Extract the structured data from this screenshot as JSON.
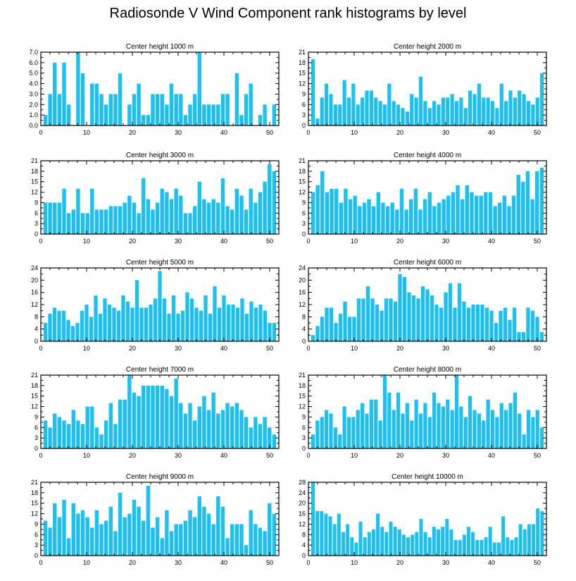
{
  "title": "Radiosonde V Wind Component rank histograms by level",
  "chart_data": [
    {
      "type": "bar",
      "title": "Center height 1000 m",
      "ylim": [
        0,
        7
      ],
      "yticks": [
        0,
        1,
        2,
        3,
        4,
        5,
        6,
        7
      ],
      "ytick_labels": [
        "0.0",
        "1.0",
        "2.0",
        "3.0",
        "4.0",
        "5.0",
        "6.0",
        "7.0"
      ],
      "xlim": [
        0,
        52
      ],
      "xticks": [
        0,
        10,
        20,
        30,
        40,
        50
      ],
      "values": [
        1,
        3,
        6,
        3,
        6,
        2,
        0,
        7,
        5,
        0,
        4,
        4,
        3,
        2,
        3,
        3,
        5,
        0,
        2,
        3,
        4,
        1,
        1,
        3,
        3,
        3,
        2,
        4,
        3,
        3,
        1,
        2,
        3,
        7,
        2,
        2,
        2,
        2,
        3,
        3,
        0,
        5,
        1,
        3,
        4,
        0,
        1,
        2,
        0,
        2
      ]
    },
    {
      "type": "bar",
      "title": "Center height 2000 m",
      "ylim": [
        0,
        21
      ],
      "yticks": [
        0,
        3,
        6,
        9,
        12,
        15,
        18,
        21
      ],
      "ytick_labels": [
        "0",
        "3",
        "6",
        "9",
        "12",
        "15",
        "18",
        "21"
      ],
      "xlim": [
        0,
        52
      ],
      "xticks": [
        0,
        10,
        20,
        30,
        40,
        50
      ],
      "values": [
        19,
        2,
        8,
        12,
        9,
        6,
        6,
        13,
        8,
        12,
        6,
        8,
        10,
        10,
        8,
        7,
        6,
        12,
        7,
        6,
        5,
        4,
        9,
        8,
        14,
        7,
        5,
        7,
        6,
        8,
        8,
        9,
        7,
        8,
        5,
        10,
        9,
        12,
        8,
        8,
        7,
        5,
        12,
        7,
        10,
        8,
        10,
        9,
        7,
        6,
        8,
        15
      ]
    },
    {
      "type": "bar",
      "title": "Center height 3000 m",
      "ylim": [
        0,
        21
      ],
      "yticks": [
        0,
        3,
        6,
        9,
        12,
        15,
        18,
        21
      ],
      "ytick_labels": [
        "0",
        "3",
        "6",
        "9",
        "12",
        "15",
        "18",
        "21"
      ],
      "xlim": [
        0,
        52
      ],
      "xticks": [
        0,
        10,
        20,
        30,
        40,
        50
      ],
      "values": [
        9,
        9,
        9,
        9,
        13,
        6,
        7,
        13,
        6,
        6,
        13,
        7,
        7,
        7,
        8,
        8,
        8,
        9,
        11,
        9,
        6,
        16,
        10,
        7,
        9,
        13,
        12,
        10,
        13,
        11,
        6,
        6,
        8,
        15,
        10,
        9,
        10,
        9,
        16,
        8,
        7,
        13,
        11,
        7,
        13,
        9,
        12,
        15,
        20,
        18
      ]
    },
    {
      "type": "bar",
      "title": "Center height 4000 m",
      "ylim": [
        0,
        21
      ],
      "yticks": [
        0,
        3,
        6,
        9,
        12,
        15,
        18,
        21
      ],
      "ytick_labels": [
        "0",
        "3",
        "6",
        "9",
        "12",
        "15",
        "18",
        "21"
      ],
      "xlim": [
        0,
        52
      ],
      "xticks": [
        0,
        10,
        20,
        30,
        40,
        50
      ],
      "values": [
        12,
        14,
        18,
        12,
        13,
        13,
        9,
        13,
        10,
        11,
        8,
        9,
        10,
        8,
        12,
        9,
        8,
        9,
        7,
        13,
        7,
        10,
        13,
        7,
        10,
        12,
        8,
        9,
        10,
        11,
        12,
        14,
        10,
        14,
        12,
        11,
        11,
        12,
        12,
        8,
        9,
        11,
        8,
        11,
        17,
        15,
        18,
        10,
        18,
        19
      ]
    },
    {
      "type": "bar",
      "title": "Center height 5000 m",
      "ylim": [
        0,
        24
      ],
      "yticks": [
        0,
        4,
        8,
        12,
        16,
        20,
        24
      ],
      "ytick_labels": [
        "0",
        "4",
        "8",
        "12",
        "16",
        "20",
        "24"
      ],
      "xlim": [
        0,
        52
      ],
      "xticks": [
        0,
        10,
        20,
        30,
        40,
        50
      ],
      "values": [
        6,
        9,
        11,
        10,
        10,
        7,
        5,
        6,
        10,
        12,
        8,
        15,
        9,
        14,
        12,
        11,
        10,
        15,
        13,
        11,
        20,
        11,
        11,
        12,
        14,
        23,
        14,
        9,
        15,
        9,
        10,
        16,
        14,
        11,
        10,
        15,
        9,
        18,
        11,
        15,
        12,
        12,
        11,
        14,
        9,
        13,
        11,
        12,
        10,
        6,
        6
      ]
    },
    {
      "type": "bar",
      "title": "Center height 6000 m",
      "ylim": [
        0,
        24
      ],
      "yticks": [
        0,
        4,
        8,
        12,
        16,
        20,
        24
      ],
      "ytick_labels": [
        "0",
        "4",
        "8",
        "12",
        "16",
        "20",
        "24"
      ],
      "xlim": [
        0,
        52
      ],
      "xticks": [
        0,
        10,
        20,
        30,
        40,
        50
      ],
      "values": [
        2,
        5,
        8,
        11,
        11,
        6,
        9,
        13,
        8,
        8,
        14,
        14,
        18,
        14,
        12,
        10,
        14,
        14,
        13,
        22,
        21,
        16,
        15,
        14,
        18,
        17,
        15,
        12,
        11,
        16,
        19,
        11,
        19,
        13,
        11,
        12,
        12,
        12,
        11,
        10,
        6,
        10,
        11,
        7,
        11,
        3,
        3,
        11,
        10,
        8,
        3
      ]
    },
    {
      "type": "bar",
      "title": "Center height 7000 m",
      "ylim": [
        0,
        21
      ],
      "yticks": [
        0,
        3,
        6,
        9,
        12,
        15,
        18,
        21
      ],
      "ytick_labels": [
        "0",
        "3",
        "6",
        "9",
        "12",
        "15",
        "18",
        "21"
      ],
      "xlim": [
        0,
        52
      ],
      "xticks": [
        0,
        10,
        20,
        30,
        40,
        50
      ],
      "values": [
        8,
        6,
        10,
        9,
        8,
        7,
        11,
        8,
        7,
        12,
        12,
        6,
        4,
        8,
        13,
        7,
        14,
        14,
        21,
        16,
        15,
        18,
        18,
        18,
        18,
        18,
        17,
        15,
        20,
        13,
        10,
        13,
        8,
        12,
        15,
        11,
        16,
        10,
        11,
        13,
        12,
        13,
        11,
        9,
        6,
        9,
        7,
        9,
        6,
        4
      ]
    },
    {
      "type": "bar",
      "title": "Center height 8000 m",
      "ylim": [
        0,
        21
      ],
      "yticks": [
        0,
        3,
        6,
        9,
        12,
        15,
        18,
        21
      ],
      "ytick_labels": [
        "0",
        "3",
        "6",
        "9",
        "12",
        "15",
        "18",
        "21"
      ],
      "xlim": [
        0,
        52
      ],
      "xticks": [
        0,
        10,
        20,
        30,
        40,
        50
      ],
      "values": [
        4,
        8,
        9,
        11,
        10,
        6,
        4,
        12,
        9,
        9,
        11,
        13,
        10,
        14,
        14,
        8,
        21,
        16,
        11,
        16,
        10,
        13,
        8,
        14,
        10,
        13,
        9,
        16,
        13,
        12,
        14,
        11,
        21,
        12,
        9,
        15,
        11,
        10,
        8,
        14,
        11,
        9,
        13,
        11,
        13,
        16,
        10,
        4,
        11,
        9,
        11,
        6
      ]
    },
    {
      "type": "bar",
      "title": "Center height 9000 m",
      "ylim": [
        0,
        21
      ],
      "yticks": [
        0,
        3,
        6,
        9,
        12,
        15,
        18,
        21
      ],
      "ytick_labels": [
        "0",
        "3",
        "6",
        "9",
        "12",
        "15",
        "18",
        "21"
      ],
      "xlim": [
        0,
        52
      ],
      "xticks": [
        0,
        10,
        20,
        30,
        40,
        50
      ],
      "values": [
        10,
        8,
        15,
        11,
        16,
        5,
        15,
        12,
        13,
        11,
        8,
        13,
        9,
        10,
        14,
        7,
        18,
        11,
        12,
        16,
        14,
        10,
        20,
        8,
        11,
        5,
        13,
        7,
        9,
        9,
        10,
        13,
        11,
        17,
        14,
        12,
        9,
        17,
        14,
        5,
        9,
        9,
        9,
        3,
        13,
        9,
        8,
        7,
        15,
        12
      ]
    },
    {
      "type": "bar",
      "title": "Center height 10000 m",
      "ylim": [
        0,
        28
      ],
      "yticks": [
        0,
        4,
        8,
        12,
        16,
        20,
        24,
        28
      ],
      "ytick_labels": [
        "0",
        "4",
        "8",
        "12",
        "16",
        "20",
        "24",
        "28"
      ],
      "xlim": [
        0,
        52
      ],
      "xticks": [
        0,
        10,
        20,
        30,
        40,
        50
      ],
      "values": [
        28,
        17,
        17,
        16,
        15,
        12,
        16,
        9,
        12,
        7,
        5,
        13,
        7,
        9,
        10,
        16,
        11,
        9,
        13,
        11,
        10,
        8,
        7,
        8,
        9,
        14,
        9,
        7,
        11,
        10,
        11,
        14,
        10,
        6,
        6,
        8,
        11,
        9,
        6,
        6,
        7,
        11,
        5,
        5,
        15,
        7,
        6,
        7,
        12,
        10,
        12,
        12,
        18,
        17
      ]
    }
  ]
}
